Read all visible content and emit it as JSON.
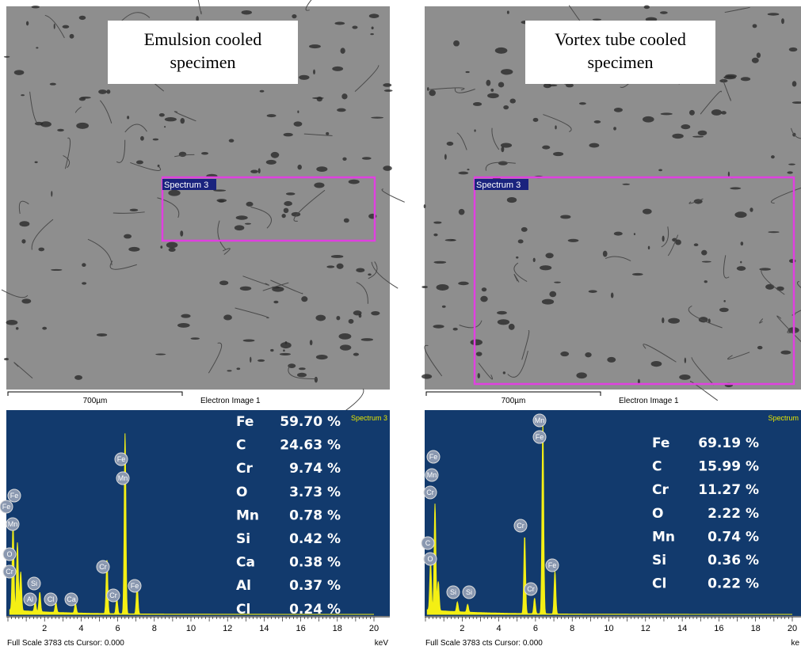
{
  "panels": [
    {
      "caption_lines": [
        "Emulsion cooled",
        "specimen"
      ],
      "region_label": "Spectrum 3",
      "scale_bar": "700µm",
      "image_label": "Electron Image 1",
      "spectrum_name": "Spectrum 3",
      "composition": [
        {
          "element": "Fe",
          "percent": "59.70 %"
        },
        {
          "element": "C",
          "percent": "24.63 %"
        },
        {
          "element": "Cr",
          "percent": "9.74 %"
        },
        {
          "element": "O",
          "percent": "3.73 %"
        },
        {
          "element": "Mn",
          "percent": "0.78 %"
        },
        {
          "element": "Si",
          "percent": "0.42 %"
        },
        {
          "element": "Ca",
          "percent": "0.38 %"
        },
        {
          "element": "Al",
          "percent": "0.37 %"
        },
        {
          "element": "Cl",
          "percent": "0.24 %"
        }
      ],
      "peak_labels": [
        "Fe",
        "Fe",
        "Mn",
        "O",
        "Cr",
        "Si",
        "Al",
        "Cl",
        "Ca",
        "Cr",
        "Cr",
        "Fe",
        "Mn",
        "Fe"
      ],
      "x_ticks": [
        "2",
        "4",
        "6",
        "8",
        "10",
        "12",
        "14",
        "16",
        "18",
        "20"
      ],
      "x_unit": "keV",
      "footer": "Full Scale 3783 cts Cursor: 0.000"
    },
    {
      "caption_lines": [
        "Vortex tube cooled",
        "specimen"
      ],
      "region_label": "Spectrum 3",
      "scale_bar": "700µm",
      "image_label": "Electron Image 1",
      "spectrum_name": "Spectrum",
      "composition": [
        {
          "element": "Fe",
          "percent": "69.19 %"
        },
        {
          "element": "C",
          "percent": "15.99 %"
        },
        {
          "element": "Cr",
          "percent": "11.27 %"
        },
        {
          "element": "O",
          "percent": "2.22 %"
        },
        {
          "element": "Mn",
          "percent": "0.74 %"
        },
        {
          "element": "Si",
          "percent": "0.36 %"
        },
        {
          "element": "Cl",
          "percent": "0.22 %"
        }
      ],
      "peak_labels": [
        "Fe",
        "Mn",
        "Cr",
        "C",
        "O",
        "Si",
        "Si",
        "Cr",
        "Cr",
        "Mn",
        "Fe",
        "Fe"
      ],
      "x_ticks": [
        "2",
        "4",
        "6",
        "8",
        "10",
        "12",
        "14",
        "16",
        "18",
        "20"
      ],
      "x_unit": "ke",
      "footer": "Full Scale 3783 cts Cursor: 0.000"
    }
  ]
}
